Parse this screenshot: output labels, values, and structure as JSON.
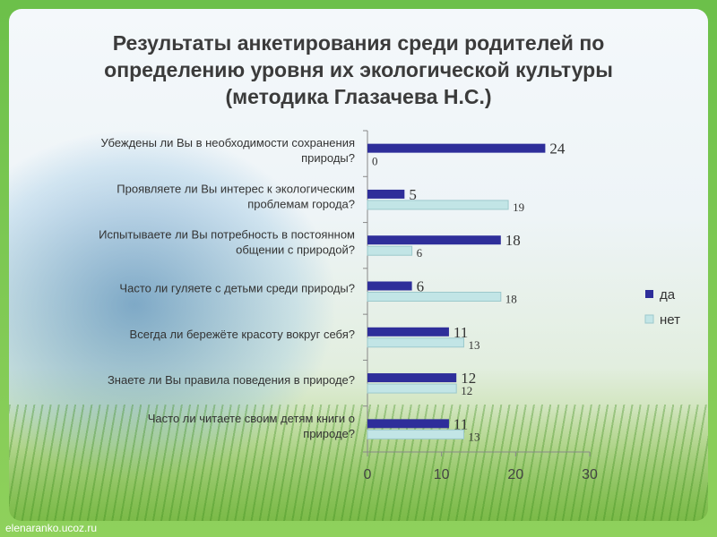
{
  "page": {
    "title_lines": [
      "Результаты анкетирования среди родителей по",
      "определению уровня их экологической культуры",
      "(методика Глазачева Н.С.)"
    ],
    "footer": "elenaranko.ucoz.ru"
  },
  "chart_data": {
    "type": "bar",
    "orientation": "horizontal",
    "categories": [
      [
        "Убеждены ли Вы в необходимости сохранения",
        "природы?"
      ],
      [
        "Проявляете ли Вы интерес к экологическим",
        "проблемам города?"
      ],
      [
        "Испытываете ли Вы потребность в постоянном",
        "общении с природой?"
      ],
      [
        "Часто ли гуляете с детьми среди природы?"
      ],
      [
        "Всегда ли бережёте красоту вокруг себя?"
      ],
      [
        "Знаете ли Вы правила поведения в природе?"
      ],
      [
        "Часто ли читаете своим детям книги о",
        "природе?"
      ]
    ],
    "series": [
      {
        "name": "да",
        "color": "#2e2e9a",
        "values": [
          24,
          5,
          18,
          6,
          11,
          12,
          11
        ]
      },
      {
        "name": "нет",
        "color": "#c2e5e6",
        "values": [
          0,
          19,
          6,
          18,
          13,
          12,
          13
        ]
      }
    ],
    "xlim": [
      0,
      30
    ],
    "xticks": [
      0,
      10,
      20,
      30
    ],
    "legend": "right",
    "grid": false
  }
}
